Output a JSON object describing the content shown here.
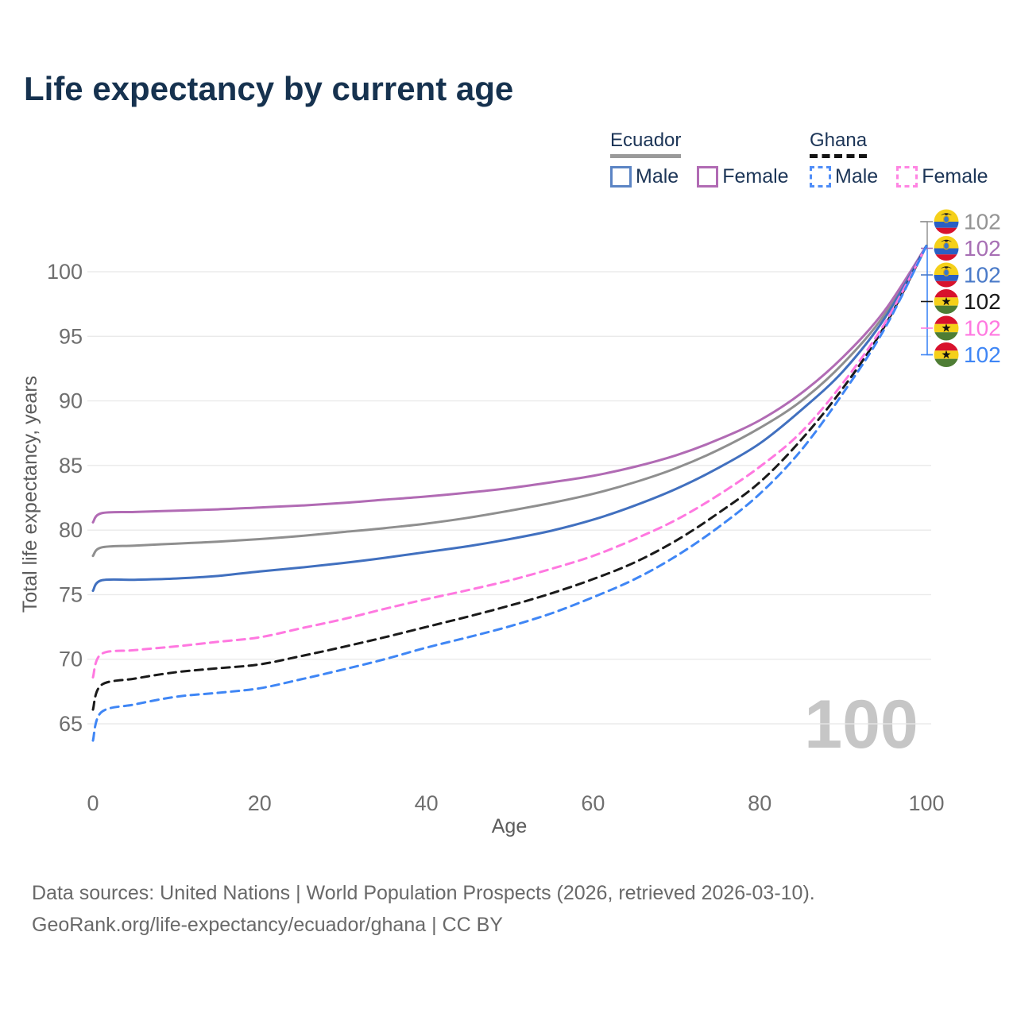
{
  "title": "Life expectancy by current age",
  "legend": {
    "groups": [
      {
        "country": "Ecuador",
        "line_style": "solid",
        "underline_color": "#9a9a9a",
        "items": [
          {
            "label": "Male",
            "color": "#5b84c4"
          },
          {
            "label": "Female",
            "color": "#b16bb4"
          }
        ]
      },
      {
        "country": "Ghana",
        "line_style": "dashed",
        "underline_color": "#141414",
        "items": [
          {
            "label": "Male",
            "color": "#4f8df7"
          },
          {
            "label": "Female",
            "color": "#ff85e3"
          }
        ]
      }
    ]
  },
  "chart_data": {
    "type": "line",
    "title": "Life expectancy by current age",
    "xlabel": "Age",
    "ylabel": "Total life expectancy, years",
    "x_ticks": [
      0,
      20,
      40,
      60,
      80,
      100
    ],
    "y_ticks": [
      65,
      70,
      75,
      80,
      85,
      90,
      95,
      100
    ],
    "xlim": [
      0,
      100
    ],
    "ylim": [
      63,
      103
    ],
    "grid": "horizontal",
    "legend_position": "top-right",
    "watermark_current_age": "100",
    "x": [
      0,
      1,
      5,
      10,
      15,
      20,
      25,
      30,
      35,
      40,
      45,
      50,
      55,
      60,
      65,
      70,
      75,
      80,
      85,
      90,
      95,
      100
    ],
    "series": [
      {
        "name": "Ecuador",
        "sex": "Both",
        "color": "#8f8f8f",
        "dash": "solid",
        "values": [
          78.0,
          78.65,
          78.8,
          78.95,
          79.1,
          79.3,
          79.55,
          79.85,
          80.15,
          80.5,
          80.95,
          81.5,
          82.1,
          82.8,
          83.7,
          84.8,
          86.2,
          87.9,
          90.0,
          92.9,
          96.7,
          102
        ]
      },
      {
        "name": "Ecuador",
        "sex": "Female",
        "color": "#b16bb4",
        "dash": "solid",
        "values": [
          80.6,
          81.3,
          81.4,
          81.5,
          81.6,
          81.75,
          81.9,
          82.1,
          82.35,
          82.6,
          82.9,
          83.25,
          83.7,
          84.2,
          84.9,
          85.8,
          87.0,
          88.5,
          90.6,
          93.4,
          97.0,
          102
        ]
      },
      {
        "name": "Ecuador",
        "sex": "Male",
        "color": "#4170bf",
        "dash": "solid",
        "values": [
          75.3,
          76.1,
          76.15,
          76.25,
          76.45,
          76.8,
          77.1,
          77.45,
          77.85,
          78.3,
          78.75,
          79.3,
          79.95,
          80.8,
          81.9,
          83.2,
          84.8,
          86.7,
          89.3,
          92.3,
          96.4,
          102
        ]
      },
      {
        "name": "Ghana",
        "sex": "Both",
        "color": "#1a1a1a",
        "dash": "dashed",
        "values": [
          66.1,
          68.0,
          68.5,
          69.0,
          69.3,
          69.6,
          70.25,
          70.95,
          71.7,
          72.5,
          73.3,
          74.15,
          75.1,
          76.2,
          77.5,
          79.2,
          81.3,
          83.7,
          87.0,
          91.0,
          95.8,
          102
        ]
      },
      {
        "name": "Ghana",
        "sex": "Female",
        "color": "#ff78e0",
        "dash": "dashed",
        "values": [
          68.6,
          70.4,
          70.7,
          71.0,
          71.35,
          71.7,
          72.4,
          73.1,
          73.9,
          74.65,
          75.35,
          76.1,
          77.0,
          78.0,
          79.3,
          80.8,
          82.7,
          84.9,
          87.6,
          91.4,
          96.0,
          102
        ]
      },
      {
        "name": "Ghana",
        "sex": "Male",
        "color": "#3f86f5",
        "dash": "dashed",
        "values": [
          63.7,
          65.9,
          66.5,
          67.1,
          67.4,
          67.75,
          68.45,
          69.2,
          70.0,
          70.9,
          71.7,
          72.55,
          73.55,
          74.8,
          76.2,
          78.0,
          80.2,
          82.8,
          86.2,
          90.6,
          95.6,
          102
        ]
      }
    ],
    "end_labels": [
      {
        "flag": "ecuador",
        "value": "102",
        "color": "#949494"
      },
      {
        "flag": "ecuador",
        "value": "102",
        "color": "#a76fb4"
      },
      {
        "flag": "ecuador",
        "value": "102",
        "color": "#4a7ac8"
      },
      {
        "flag": "ghana",
        "value": "102",
        "color": "#1a1a1a"
      },
      {
        "flag": "ghana",
        "value": "102",
        "color": "#ff78e0"
      },
      {
        "flag": "ghana",
        "value": "102",
        "color": "#3f86f5"
      }
    ]
  },
  "footer": {
    "line1": "Data sources: United Nations | World Population Prospects (2026, retrieved 2026-03-10).",
    "line2": "GeoRank.org/life-expectancy/ecuador/ghana | CC BY"
  }
}
